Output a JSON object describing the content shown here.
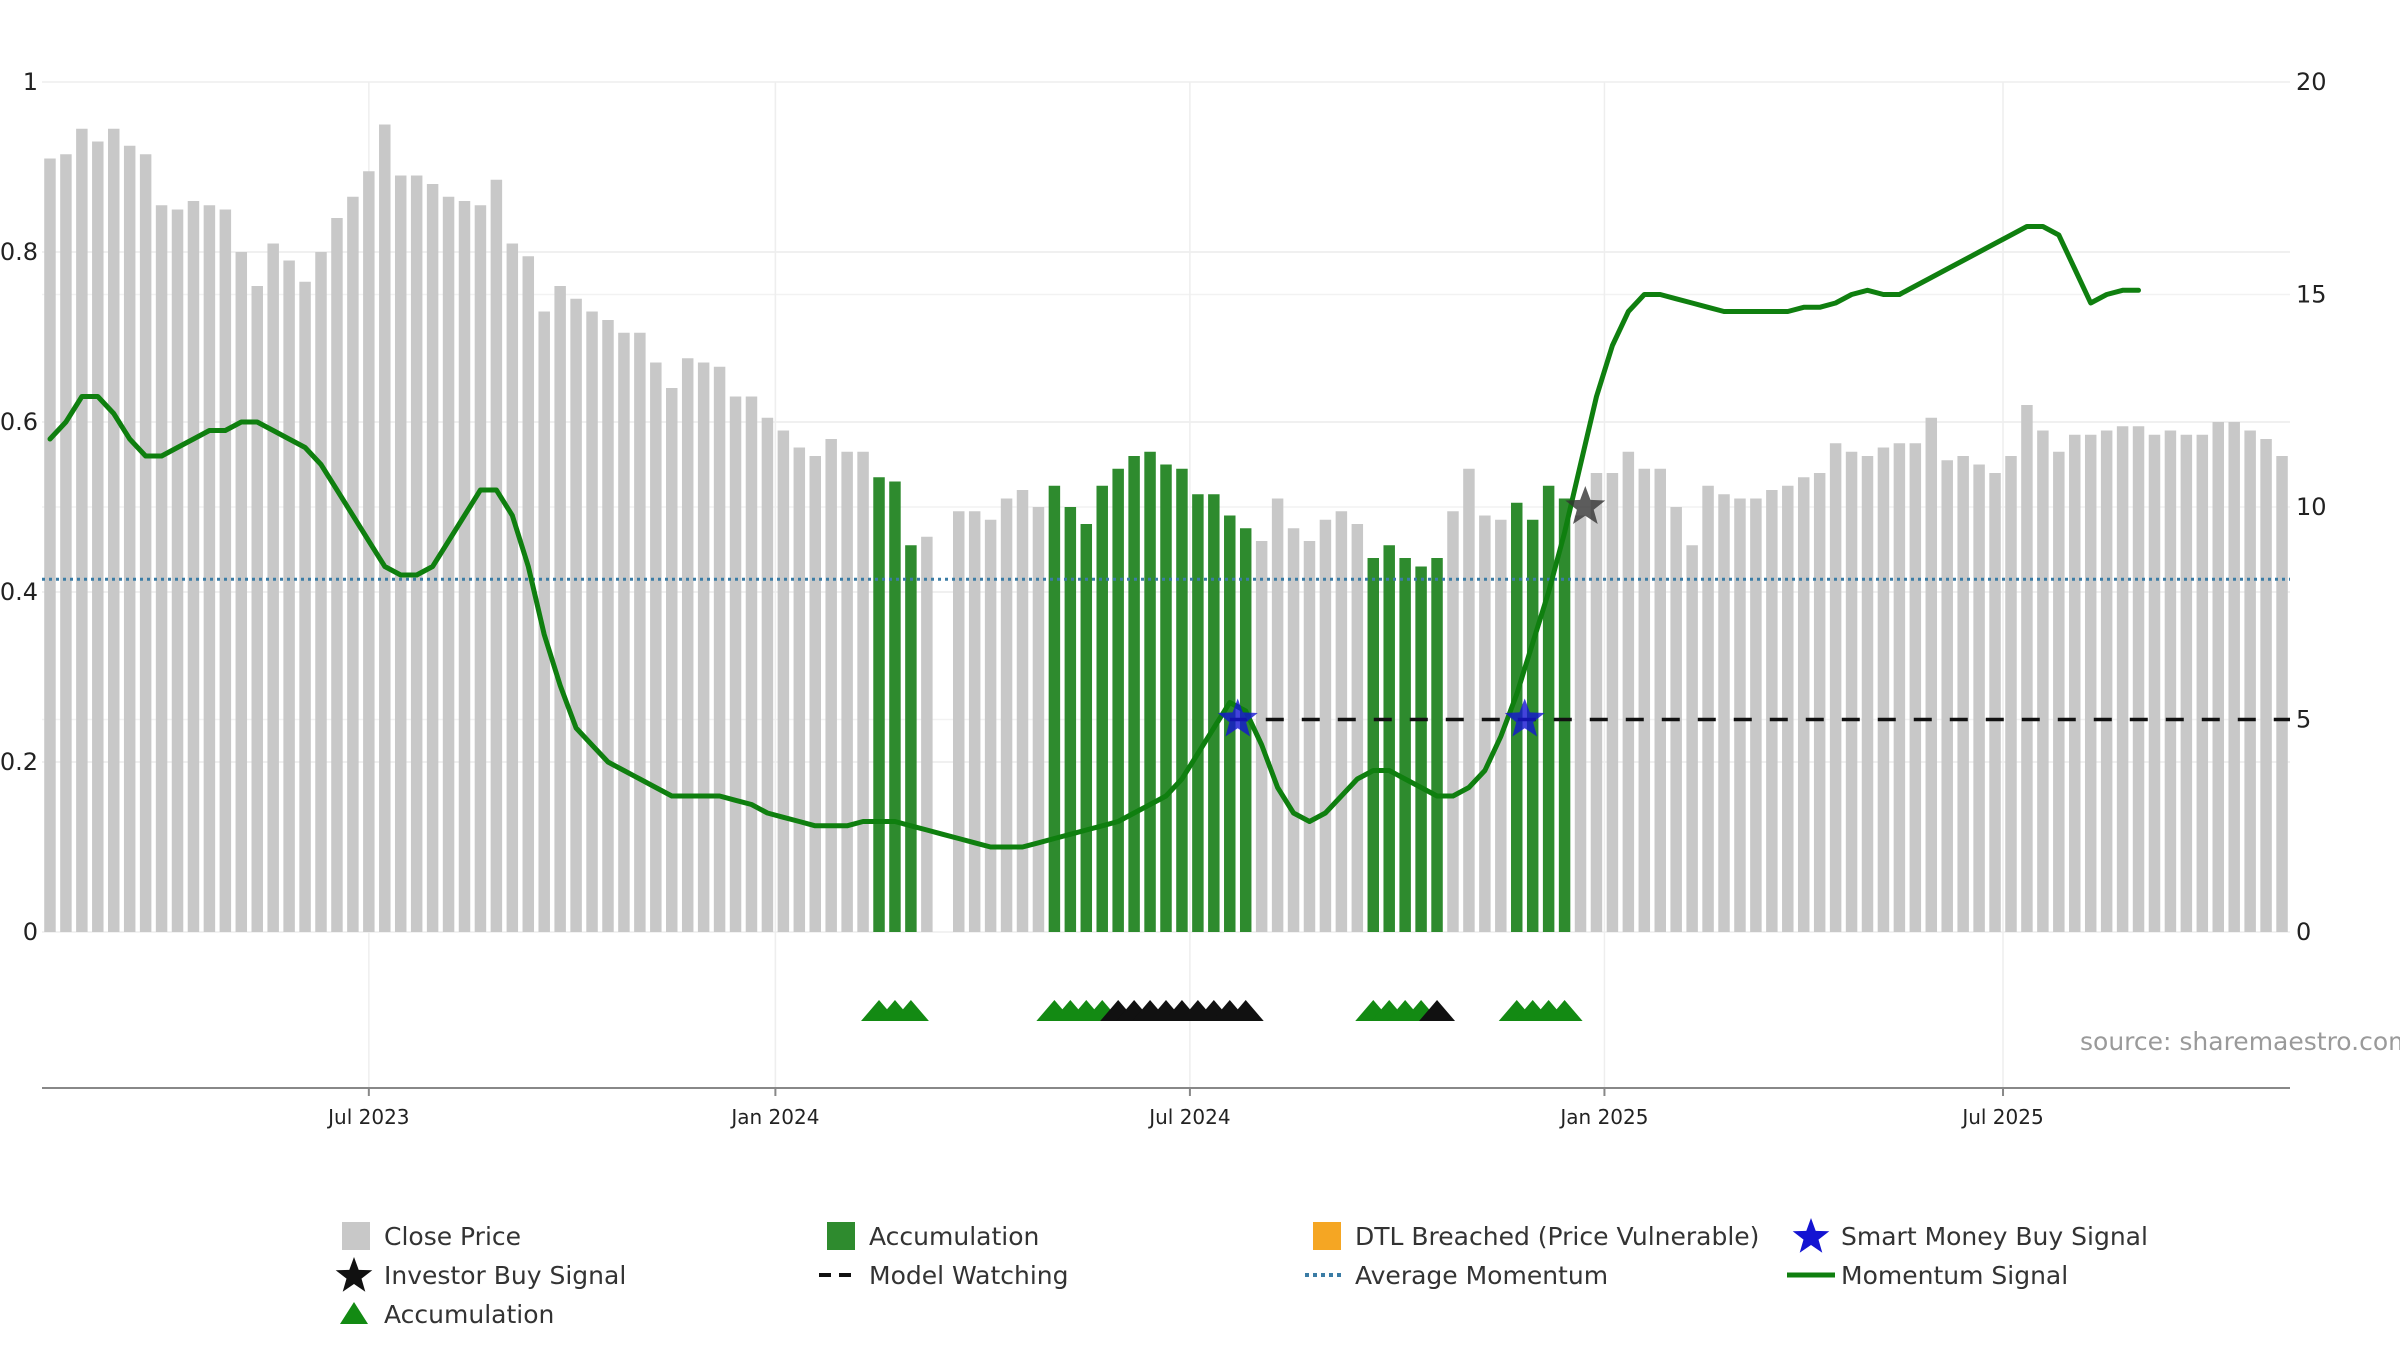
{
  "chart_data": {
    "type": "bar",
    "title": "",
    "source": "source: sharemaestro.com",
    "left_axis": {
      "range": [
        0,
        1
      ],
      "ticks": [
        "0",
        "0.2",
        "0.4",
        "0.6",
        "0.8",
        "1"
      ],
      "tick_values": [
        0,
        0.2,
        0.4,
        0.6,
        0.8,
        1
      ]
    },
    "right_axis": {
      "range": [
        0,
        20
      ],
      "ticks": [
        "0",
        "5",
        "10",
        "15",
        "20"
      ],
      "tick_values": [
        0,
        5,
        10,
        15,
        20
      ]
    },
    "x_ticks": [
      {
        "label": "Jul 2023",
        "index": 20
      },
      {
        "label": "Jan 2024",
        "index": 45.5
      },
      {
        "label": "Jul 2024",
        "index": 71.5
      },
      {
        "label": "Jan 2025",
        "index": 97.5
      },
      {
        "label": "Jul 2025",
        "index": 122.5
      }
    ],
    "close_price": [
      18.2,
      18.3,
      18.9,
      18.6,
      18.9,
      18.5,
      18.3,
      17.1,
      17.0,
      17.2,
      17.1,
      17.0,
      16.0,
      15.2,
      16.2,
      15.8,
      15.3,
      16.0,
      16.8,
      17.3,
      17.9,
      19.0,
      17.8,
      17.8,
      17.6,
      17.3,
      17.2,
      17.1,
      17.7,
      16.2,
      15.9,
      14.6,
      15.2,
      14.9,
      14.6,
      14.4,
      14.1,
      14.1,
      13.4,
      12.8,
      13.5,
      13.4,
      13.3,
      12.6,
      12.6,
      12.1,
      11.8,
      11.4,
      11.2,
      11.6,
      11.3,
      11.3,
      10.7,
      10.6,
      9.1,
      9.3,
      0,
      9.9,
      9.9,
      9.7,
      10.2,
      10.4,
      10.0,
      10.5,
      10.0,
      9.6,
      10.5,
      10.9,
      11.2,
      11.3,
      11.0,
      10.9,
      10.3,
      10.3,
      9.8,
      9.5,
      9.2,
      10.2,
      9.5,
      9.2,
      9.7,
      9.9,
      9.6,
      8.8,
      9.1,
      8.8,
      8.6,
      8.8,
      9.9,
      10.9,
      9.8,
      9.7,
      10.1,
      9.7,
      10.5,
      10.2,
      9.8,
      10.8,
      10.8,
      11.3,
      10.9,
      10.9,
      10.0,
      9.1,
      10.5,
      10.3,
      10.2,
      10.2,
      10.4,
      10.5,
      10.7,
      10.8,
      11.5,
      11.3,
      11.2,
      11.4,
      11.5,
      11.5,
      12.1,
      11.1,
      11.2,
      11.0,
      10.8,
      11.2,
      12.4,
      11.8,
      11.3,
      11.7,
      11.7,
      11.8,
      11.9,
      11.9,
      11.7,
      11.8,
      11.7,
      11.7,
      12.0,
      12.0,
      11.8,
      11.6,
      11.2
    ],
    "accumulation_ranges": [
      [
        52,
        54
      ],
      [
        63,
        75
      ],
      [
        83,
        87
      ],
      [
        92,
        95
      ]
    ],
    "momentum_signal": [
      [
        0,
        0.58
      ],
      [
        1,
        0.6
      ],
      [
        2,
        0.63
      ],
      [
        3,
        0.63
      ],
      [
        4,
        0.61
      ],
      [
        5,
        0.58
      ],
      [
        6,
        0.56
      ],
      [
        7,
        0.56
      ],
      [
        8,
        0.57
      ],
      [
        9,
        0.58
      ],
      [
        10,
        0.59
      ],
      [
        11,
        0.59
      ],
      [
        12,
        0.6
      ],
      [
        13,
        0.6
      ],
      [
        14,
        0.59
      ],
      [
        15,
        0.58
      ],
      [
        16,
        0.57
      ],
      [
        17,
        0.55
      ],
      [
        18,
        0.52
      ],
      [
        19,
        0.49
      ],
      [
        20,
        0.46
      ],
      [
        21,
        0.43
      ],
      [
        22,
        0.42
      ],
      [
        23,
        0.42
      ],
      [
        24,
        0.43
      ],
      [
        25,
        0.46
      ],
      [
        26,
        0.49
      ],
      [
        27,
        0.52
      ],
      [
        28,
        0.52
      ],
      [
        29,
        0.49
      ],
      [
        30,
        0.43
      ],
      [
        31,
        0.35
      ],
      [
        32,
        0.29
      ],
      [
        33,
        0.24
      ],
      [
        34,
        0.22
      ],
      [
        35,
        0.2
      ],
      [
        36,
        0.19
      ],
      [
        37,
        0.18
      ],
      [
        38,
        0.17
      ],
      [
        39,
        0.16
      ],
      [
        40,
        0.16
      ],
      [
        41,
        0.16
      ],
      [
        42,
        0.16
      ],
      [
        43,
        0.155
      ],
      [
        44,
        0.15
      ],
      [
        45,
        0.14
      ],
      [
        46,
        0.135
      ],
      [
        47,
        0.13
      ],
      [
        48,
        0.125
      ],
      [
        49,
        0.125
      ],
      [
        50,
        0.125
      ],
      [
        51,
        0.13
      ],
      [
        52,
        0.13
      ],
      [
        53,
        0.13
      ],
      [
        54,
        0.125
      ],
      [
        55,
        0.12
      ],
      [
        56,
        0.115
      ],
      [
        57,
        0.11
      ],
      [
        58,
        0.105
      ],
      [
        59,
        0.1
      ],
      [
        60,
        0.1
      ],
      [
        61,
        0.1
      ],
      [
        62,
        0.105
      ],
      [
        63,
        0.11
      ],
      [
        64,
        0.115
      ],
      [
        65,
        0.12
      ],
      [
        66,
        0.125
      ],
      [
        67,
        0.13
      ],
      [
        68,
        0.14
      ],
      [
        69,
        0.15
      ],
      [
        70,
        0.16
      ],
      [
        71,
        0.18
      ],
      [
        72,
        0.21
      ],
      [
        73,
        0.24
      ],
      [
        74,
        0.27
      ],
      [
        75,
        0.26
      ],
      [
        76,
        0.22
      ],
      [
        77,
        0.17
      ],
      [
        78,
        0.14
      ],
      [
        79,
        0.13
      ],
      [
        80,
        0.14
      ],
      [
        81,
        0.16
      ],
      [
        82,
        0.18
      ],
      [
        83,
        0.19
      ],
      [
        84,
        0.19
      ],
      [
        85,
        0.18
      ],
      [
        86,
        0.17
      ],
      [
        87,
        0.16
      ],
      [
        88,
        0.16
      ],
      [
        89,
        0.17
      ],
      [
        90,
        0.19
      ],
      [
        91,
        0.23
      ],
      [
        92,
        0.28
      ],
      [
        93,
        0.34
      ],
      [
        94,
        0.4
      ],
      [
        95,
        0.47
      ],
      [
        96,
        0.55
      ],
      [
        97,
        0.63
      ],
      [
        98,
        0.69
      ],
      [
        99,
        0.73
      ],
      [
        100,
        0.75
      ],
      [
        101,
        0.75
      ],
      [
        102,
        0.745
      ],
      [
        103,
        0.74
      ],
      [
        104,
        0.735
      ],
      [
        105,
        0.73
      ],
      [
        106,
        0.73
      ],
      [
        107,
        0.73
      ],
      [
        108,
        0.73
      ],
      [
        109,
        0.73
      ],
      [
        110,
        0.735
      ],
      [
        111,
        0.735
      ],
      [
        112,
        0.74
      ],
      [
        113,
        0.75
      ],
      [
        114,
        0.755
      ],
      [
        115,
        0.75
      ],
      [
        116,
        0.75
      ],
      [
        117,
        0.76
      ],
      [
        118,
        0.77
      ],
      [
        119,
        0.78
      ],
      [
        120,
        0.79
      ],
      [
        121,
        0.8
      ],
      [
        122,
        0.81
      ],
      [
        123,
        0.82
      ],
      [
        124,
        0.83
      ],
      [
        125,
        0.83
      ],
      [
        126,
        0.82
      ],
      [
        127,
        0.78
      ],
      [
        128,
        0.74
      ],
      [
        129,
        0.75
      ],
      [
        130,
        0.755
      ],
      [
        131,
        0.755
      ]
    ],
    "average_momentum": 0.415,
    "model_watching_level": 5,
    "model_watching_start": 74,
    "smart_money_buy_signals": [
      {
        "index": 74.5,
        "value": 5
      },
      {
        "index": 92.5,
        "value": 5
      }
    ],
    "investor_buy_signals": [
      {
        "index": 96.3,
        "value": 10
      }
    ],
    "accumulation_triangles": [
      52,
      53,
      54,
      63,
      64,
      65,
      66,
      83,
      84,
      85,
      86,
      92,
      93,
      94,
      95
    ],
    "black_triangles": [
      67,
      68,
      69,
      70,
      71,
      72,
      73,
      74,
      75,
      87
    ]
  },
  "legend": {
    "close_price": "Close Price",
    "accumulation_bar": "Accumulation",
    "dtl_breached": "DTL Breached (Price Vulnerable)",
    "smart_money": "Smart Money Buy Signal",
    "investor_buy": "Investor Buy Signal",
    "model_watching": "Model Watching",
    "average_momentum": "Average Momentum",
    "momentum_signal": "Momentum Signal",
    "accumulation_triangle": "Accumulation"
  },
  "colors": {
    "close_price": "#c8c8c8",
    "accumulation": "#2e8b2e",
    "dtl": "#f5a623",
    "smart_money": "#1414d2",
    "investor": "#111111",
    "avg_momentum": "#3a7ca5",
    "momentum": "#0f7f0f",
    "triangle_green": "#138a13",
    "triangle_black": "#111111"
  }
}
